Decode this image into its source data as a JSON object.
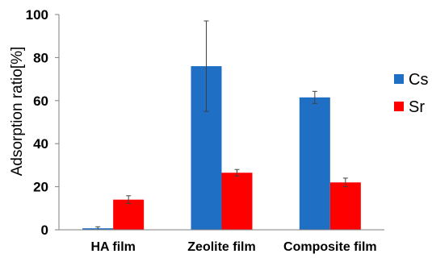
{
  "chart_data": {
    "type": "bar",
    "title": "",
    "xlabel": "",
    "ylabel": "Adsorption ratio[%]",
    "ylim": [
      0,
      100
    ],
    "yticks": [
      0,
      20,
      40,
      60,
      80,
      100
    ],
    "grid": false,
    "legend_position": "right",
    "categories": [
      "HA film",
      "Zeolite film",
      "Composite film"
    ],
    "series": [
      {
        "name": "Cs",
        "color": "#1f6fc5",
        "values": [
          0.7,
          76,
          61.5
        ],
        "errors": [
          0.7,
          21,
          2.8
        ]
      },
      {
        "name": "Sr",
        "color": "#ff0000",
        "values": [
          14,
          26.5,
          22
        ],
        "errors": [
          1.8,
          1.5,
          2
        ]
      }
    ]
  }
}
